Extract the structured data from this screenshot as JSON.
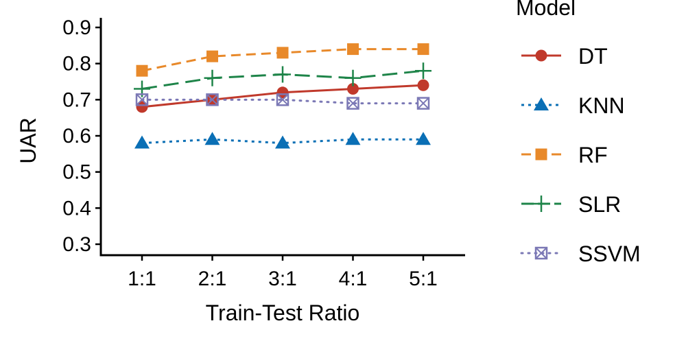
{
  "chart_data": {
    "type": "line",
    "title": "",
    "xlabel": "Train-Test Ratio",
    "ylabel": "UAR",
    "categories": [
      "1:1",
      "2:1",
      "3:1",
      "4:1",
      "5:1"
    ],
    "ylim": [
      0.27,
      0.93
    ],
    "yticks": [
      0.3,
      0.4,
      0.5,
      0.6,
      0.7,
      0.8,
      0.9
    ],
    "ytick_labels": [
      "0.3",
      "0.4",
      "0.5",
      "0.6",
      "0.7",
      "0.8",
      "0.9"
    ],
    "grid": false,
    "legend": {
      "title": "Model",
      "position": "right"
    },
    "series": [
      {
        "name": "DT",
        "values": [
          0.68,
          0.7,
          0.72,
          0.73,
          0.74
        ],
        "color": "#c0392b",
        "dash": "solid",
        "marker": "circle"
      },
      {
        "name": "KNN",
        "values": [
          0.58,
          0.59,
          0.58,
          0.59,
          0.59
        ],
        "color": "#0a6fb5",
        "dash": "dotted",
        "marker": "triangle"
      },
      {
        "name": "RF",
        "values": [
          0.78,
          0.82,
          0.83,
          0.84,
          0.84
        ],
        "color": "#e8892a",
        "dash": "dashed",
        "marker": "square"
      },
      {
        "name": "SLR",
        "values": [
          0.73,
          0.76,
          0.77,
          0.76,
          0.78
        ],
        "color": "#1e8449",
        "dash": "longdash",
        "marker": "plus"
      },
      {
        "name": "SSVM",
        "values": [
          0.7,
          0.7,
          0.7,
          0.69,
          0.69
        ],
        "color": "#7b78b5",
        "dash": "dots",
        "marker": "boxx"
      }
    ]
  }
}
